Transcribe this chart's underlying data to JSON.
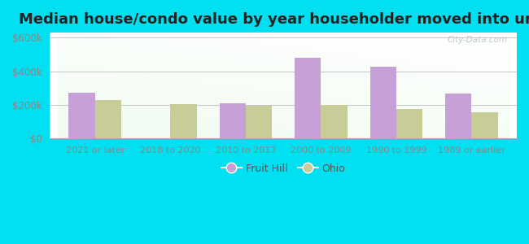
{
  "title": "Median house/condo value by year householder moved into unit",
  "categories": [
    "2021 or later",
    "2018 to 2020",
    "2010 to 2017",
    "2000 to 2009",
    "1990 to 1999",
    "1989 or earlier"
  ],
  "fruit_hill": [
    270000,
    0,
    210000,
    480000,
    425000,
    265000
  ],
  "ohio": [
    230000,
    205000,
    195000,
    198000,
    175000,
    155000
  ],
  "fruit_hill_color": "#c8a0d8",
  "ohio_color": "#c8cc96",
  "background_outer": "#00e0f0",
  "yticks": [
    0,
    200000,
    400000,
    600000
  ],
  "ylim": [
    0,
    630000
  ],
  "title_fontsize": 13,
  "legend_labels": [
    "Fruit Hill",
    "Ohio"
  ],
  "watermark": "City-Data.com"
}
